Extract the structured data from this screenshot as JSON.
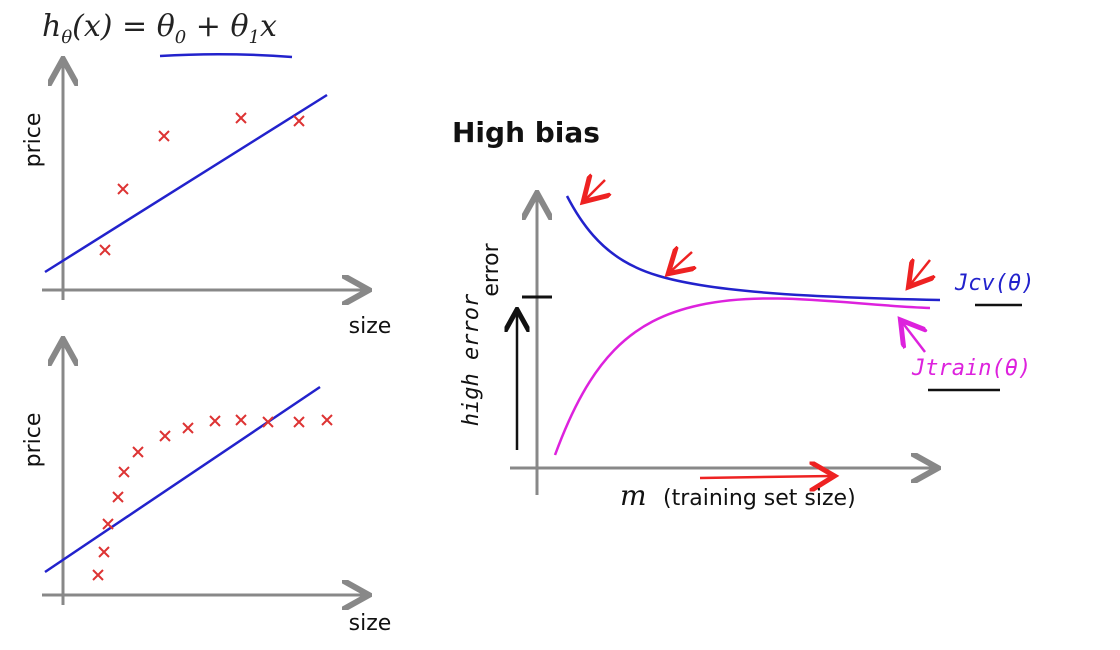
{
  "formula": {
    "parts": [
      "h",
      "θ",
      "(x) = θ",
      "0",
      " + θ",
      "1",
      "x"
    ]
  },
  "plot_top": {
    "y_label": "price",
    "x_label": "size"
  },
  "plot_bottom": {
    "y_label": "price",
    "x_label": "size"
  },
  "learning_curve": {
    "title": "High bias",
    "y_label": "error",
    "x_symbol": "m",
    "x_label": "(training set size)",
    "cv_label": "Jcv(θ)",
    "train_label": "Jtrain(θ)",
    "note": "high error"
  }
}
